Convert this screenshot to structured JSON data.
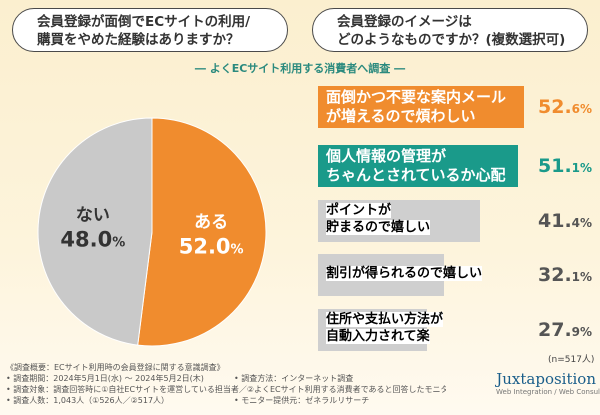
{
  "questions": {
    "q1": [
      "会員登録が面倒でECサイトの利用/",
      "購買をやめた経験はありますか？"
    ],
    "q2": [
      "会員登録のイメージは",
      "どのようなものですか？(複数選択可)"
    ]
  },
  "subtitle": "― よくECサイト利用する消費者へ調査 ―",
  "colors": {
    "orange": "#f08c2e",
    "gray": "#c9c9c9",
    "teal": "#1a9a8a",
    "text": "#333333"
  },
  "chart_data": [
    {
      "type": "pie",
      "slices": [
        {
          "label": "ある",
          "value": 52.0,
          "value_text": "52.0",
          "color": "#f08c2e"
        },
        {
          "label": "ない",
          "value": 48.0,
          "value_text": "48.0",
          "color": "#c9c9c9"
        }
      ]
    },
    {
      "type": "bar",
      "orientation": "horizontal",
      "xlim": [
        0,
        100
      ],
      "note": "(n=517人)",
      "bars": [
        {
          "label_lines": [
            "面倒かつ不要な案内メール",
            "が増えるので煩わしい"
          ],
          "value": 52.6,
          "value_main": "52.",
          "value_dec": "6%",
          "style": "orange"
        },
        {
          "label_lines": [
            "個人情報の管理が",
            "ちゃんとされているか心配"
          ],
          "value": 51.1,
          "value_main": "51.",
          "value_dec": "1%",
          "style": "teal"
        },
        {
          "label_lines": [
            "ポイントが",
            "貯まるので嬉しい"
          ],
          "value": 41.4,
          "value_main": "41.",
          "value_dec": "4%",
          "style": "gray"
        },
        {
          "label_lines": [
            "割引が得られるので嬉しい"
          ],
          "value": 32.1,
          "value_main": "32.",
          "value_dec": "1%",
          "style": "gray"
        },
        {
          "label_lines": [
            "住所や支払い方法が",
            "自動入力されて楽"
          ],
          "value": 27.9,
          "value_main": "27.",
          "value_dec": "9%",
          "style": "gray"
        }
      ]
    }
  ],
  "notes": {
    "left": [
      "《調査概要：ECサイト利用時の会員登録に関する意識調査》",
      "• 調査期間：2024年5月1日(水) ～ 2024年5月2日(木)",
      "• 調査対象：調査回答時に①自社ECサイトを運営している担当者／②よくECサイト利用する消費者であると回答したモニター",
      "• 調査人数：1,043人（①526人／②517人）"
    ],
    "right": [
      "• 調査方法：インターネット調査",
      "• モニター提供元：ゼネラルリサーチ"
    ]
  },
  "logo": {
    "name": "Juxtaposition",
    "tag": "Web Integration / Web Consulting"
  }
}
